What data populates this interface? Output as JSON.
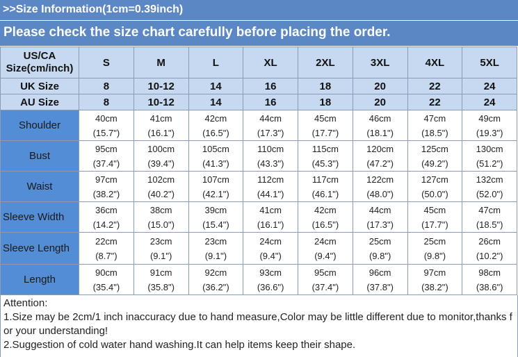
{
  "header": {
    "info": ">>Size Information(1cm=0.39inch)",
    "notice": "Please check the size chart carefully before placing the order."
  },
  "table": {
    "size_rows": [
      {
        "label": "US/CA Size(cm/inch)",
        "sizes": [
          "S",
          "M",
          "L",
          "XL",
          "2XL",
          "3XL",
          "4XL",
          "5XL"
        ]
      },
      {
        "label": "UK Size",
        "sizes": [
          "8",
          "10-12",
          "14",
          "16",
          "18",
          "20",
          "22",
          "24"
        ]
      },
      {
        "label": "AU Size",
        "sizes": [
          "8",
          "10-12",
          "14",
          "16",
          "18",
          "20",
          "22",
          "24"
        ]
      }
    ],
    "measure_rows": [
      {
        "label": "Shoulder",
        "cells": [
          [
            "40cm",
            "(15.7\")"
          ],
          [
            "41cm",
            "(16.1\")"
          ],
          [
            "42cm",
            "(16.5\")"
          ],
          [
            "44cm",
            "(17.3\")"
          ],
          [
            "45cm",
            "(17.7\")"
          ],
          [
            "46cm",
            "(18.1\")"
          ],
          [
            "47cm",
            "(18.5\")"
          ],
          [
            "49cm",
            "(19.3\")"
          ]
        ]
      },
      {
        "label": "Bust",
        "cells": [
          [
            "95cm",
            "(37.4\")"
          ],
          [
            "100cm",
            "(39.4\")"
          ],
          [
            "105cm",
            "(41.3\")"
          ],
          [
            "110cm",
            "(43.3\")"
          ],
          [
            "115cm",
            "(45.3\")"
          ],
          [
            "120cm",
            "(47.2\")"
          ],
          [
            "125cm",
            "(49.2\")"
          ],
          [
            "130cm",
            "(51.2\")"
          ]
        ]
      },
      {
        "label": "Waist",
        "cells": [
          [
            "97cm",
            "(38.2\")"
          ],
          [
            "102cm",
            "(40.2\")"
          ],
          [
            "107cm",
            "(42.1\")"
          ],
          [
            "112cm",
            "(44.1\")"
          ],
          [
            "117cm",
            "(46.1\")"
          ],
          [
            "122cm",
            "(48.0\")"
          ],
          [
            "127cm",
            "(50.0\")"
          ],
          [
            "132cm",
            "(52.0\")"
          ]
        ]
      },
      {
        "label": "Sleeve Width",
        "cells": [
          [
            "36cm",
            "(14.2\")"
          ],
          [
            "38cm",
            "(15.0\")"
          ],
          [
            "39cm",
            "(15.4\")"
          ],
          [
            "41cm",
            "(16.1\")"
          ],
          [
            "42cm",
            "(16.5\")"
          ],
          [
            "44cm",
            "(17.3\")"
          ],
          [
            "45cm",
            "(17.7\")"
          ],
          [
            "47cm",
            "(18.5\")"
          ]
        ]
      },
      {
        "label": "Sleeve Length",
        "cells": [
          [
            "22cm",
            "(8.7\")"
          ],
          [
            "23cm",
            "(9.1\")"
          ],
          [
            "23cm",
            "(9.1\")"
          ],
          [
            "24cm",
            "(9.4\")"
          ],
          [
            "24cm",
            "(9.4\")"
          ],
          [
            "25cm",
            "(9.8\")"
          ],
          [
            "25cm",
            "(9.8\")"
          ],
          [
            "26cm",
            "(10.2\")"
          ]
        ]
      },
      {
        "label": "Length",
        "cells": [
          [
            "90cm",
            "(35.4\")"
          ],
          [
            "91cm",
            "(35.8\")"
          ],
          [
            "92cm",
            "(36.2\")"
          ],
          [
            "93cm",
            "(36.6\")"
          ],
          [
            "95cm",
            "(37.4\")"
          ],
          [
            "96cm",
            "(37.8\")"
          ],
          [
            "97cm",
            "(38.2\")"
          ],
          [
            "98cm",
            "(38.6\")"
          ]
        ]
      }
    ]
  },
  "attention": {
    "title": "Attention:",
    "lines": [
      "1.Size may be 2cm/1 inch inaccuracy due to hand measure,Color may be little different due to monitor,thanks for your understanding!",
      "2.Suggestion of cold water hand washing.It can help items keep their shape."
    ]
  }
}
